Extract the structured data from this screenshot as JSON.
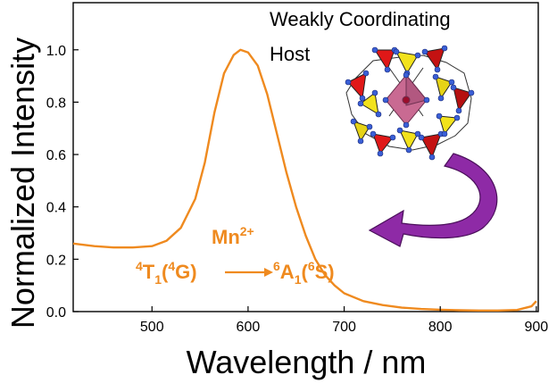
{
  "chart_data": {
    "type": "line",
    "xlabel": "Wavelength / nm",
    "ylabel": "Normalized Intensity",
    "xlim": [
      418,
      902
    ],
    "ylim": [
      0,
      1.18
    ],
    "xticks": [
      500,
      600,
      700,
      800,
      900
    ],
    "yticks": [
      0.0,
      0.2,
      0.4,
      0.6,
      0.8,
      1.0
    ],
    "ytick_labels": [
      "0.0",
      "0.2",
      "0.4",
      "0.6",
      "0.8",
      "1.0"
    ],
    "grid": false,
    "series": [
      {
        "color": "#ef8a1f",
        "x": [
          418,
          440,
          460,
          480,
          500,
          515,
          530,
          545,
          555,
          565,
          575,
          585,
          592,
          600,
          610,
          620,
          630,
          640,
          650,
          660,
          670,
          680,
          690,
          700,
          720,
          740,
          760,
          780,
          800,
          820,
          840,
          860,
          880,
          895,
          900
        ],
        "y": [
          0.26,
          0.25,
          0.245,
          0.245,
          0.25,
          0.27,
          0.32,
          0.43,
          0.57,
          0.76,
          0.91,
          0.98,
          1.0,
          0.99,
          0.94,
          0.83,
          0.68,
          0.53,
          0.4,
          0.29,
          0.2,
          0.14,
          0.1,
          0.07,
          0.04,
          0.025,
          0.015,
          0.01,
          0.007,
          0.005,
          0.004,
          0.004,
          0.006,
          0.02,
          0.04
        ]
      }
    ]
  },
  "annotations": {
    "ion": "Mn",
    "ion_charge": "2+",
    "transition": {
      "from_level": "T",
      "from_sub": "1",
      "from_sup": "4",
      "from_term": "G",
      "from_term_sup": "4",
      "to_level": "A",
      "to_sub": "1",
      "to_sup": "6",
      "to_term": "S",
      "to_term_sup": "6"
    },
    "host_line1": "Weakly Coordinating",
    "host_line2": "Host"
  },
  "colors": {
    "curve": "#ef8a1f",
    "arrow": "#8e2aa6",
    "tetra_red": "#e01818",
    "tetra_yellow": "#f2e21c",
    "octahedron": "#c96a92",
    "atoms": "#3a5fd6"
  }
}
